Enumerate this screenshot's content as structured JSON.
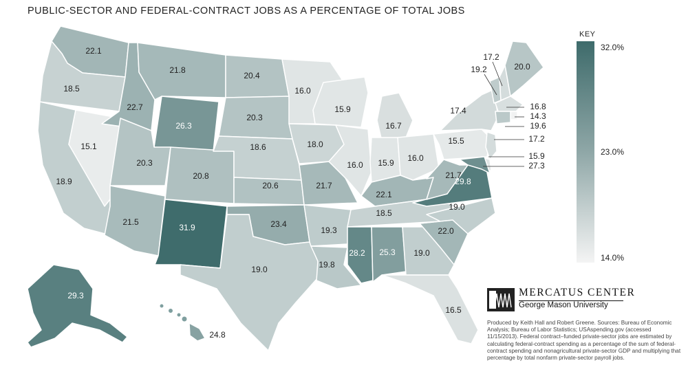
{
  "title": "PUBLIC-SECTOR AND FEDERAL-CONTRACT JOBS AS A PERCENTAGE OF TOTAL JOBS",
  "key": {
    "title": "KEY",
    "max_label": "32.0%",
    "mid_label": "23.0%",
    "min_label": "14.0%",
    "max_value": 32.0,
    "min_value": 14.0,
    "max_color": "#3e6b6b",
    "min_color": "#f4f4f4"
  },
  "logo": {
    "name": "MERCATUS CENTER",
    "sub": "George Mason University"
  },
  "credit": "Produced by Keith Hall and Robert Greene. Sources: Bureau of Economic Analysis; Bureau of Labor Statistics; USAspending.gov (accessed 11/15/2013). Federal contract–funded private-sector jobs are estimated by calculating federal-contract spending as a percentage of the sum of federal-contract spending and nonagricultural private-sector GDP and multiplying that percentage by total nonfarm private-sector payroll jobs.",
  "states": [
    {
      "code": "WA",
      "value": 22.1
    },
    {
      "code": "OR",
      "value": 18.5
    },
    {
      "code": "CA",
      "value": 18.9
    },
    {
      "code": "NV",
      "value": 15.1
    },
    {
      "code": "ID",
      "value": 22.7
    },
    {
      "code": "MT",
      "value": 21.8
    },
    {
      "code": "WY",
      "value": 26.3
    },
    {
      "code": "UT",
      "value": 20.3
    },
    {
      "code": "AZ",
      "value": 21.5
    },
    {
      "code": "CO",
      "value": 20.8
    },
    {
      "code": "NM",
      "value": 31.9
    },
    {
      "code": "ND",
      "value": 20.4
    },
    {
      "code": "SD",
      "value": 20.3
    },
    {
      "code": "NE",
      "value": 18.6
    },
    {
      "code": "KS",
      "value": 20.6
    },
    {
      "code": "OK",
      "value": 23.4
    },
    {
      "code": "TX",
      "value": 19.0
    },
    {
      "code": "MN",
      "value": 16.0
    },
    {
      "code": "IA",
      "value": 18.0
    },
    {
      "code": "MO",
      "value": 21.7
    },
    {
      "code": "AR",
      "value": 19.3
    },
    {
      "code": "LA",
      "value": 19.8
    },
    {
      "code": "WI",
      "value": 15.9
    },
    {
      "code": "IL",
      "value": 16.0
    },
    {
      "code": "MI",
      "value": 16.7
    },
    {
      "code": "IN",
      "value": 15.9
    },
    {
      "code": "OH",
      "value": 16.0
    },
    {
      "code": "KY",
      "value": 22.1
    },
    {
      "code": "TN",
      "value": 18.5
    },
    {
      "code": "MS",
      "value": 28.2
    },
    {
      "code": "AL",
      "value": 25.3
    },
    {
      "code": "GA",
      "value": 19.0
    },
    {
      "code": "FL",
      "value": 16.5
    },
    {
      "code": "SC",
      "value": 22.0
    },
    {
      "code": "NC",
      "value": 19.0
    },
    {
      "code": "VA",
      "value": 29.8
    },
    {
      "code": "WV",
      "value": 21.7
    },
    {
      "code": "PA",
      "value": 15.5
    },
    {
      "code": "NY",
      "value": 17.4
    },
    {
      "code": "VT",
      "value": 19.2
    },
    {
      "code": "NH",
      "value": 17.2
    },
    {
      "code": "ME",
      "value": 20.0
    },
    {
      "code": "MA",
      "value": 16.8
    },
    {
      "code": "RI",
      "value": 14.3
    },
    {
      "code": "CT",
      "value": 19.6
    },
    {
      "code": "NJ",
      "value": 17.2
    },
    {
      "code": "DE",
      "value": 15.9
    },
    {
      "code": "MD",
      "value": 27.3
    },
    {
      "code": "AK",
      "value": 29.3
    },
    {
      "code": "HI",
      "value": 24.8
    }
  ]
}
